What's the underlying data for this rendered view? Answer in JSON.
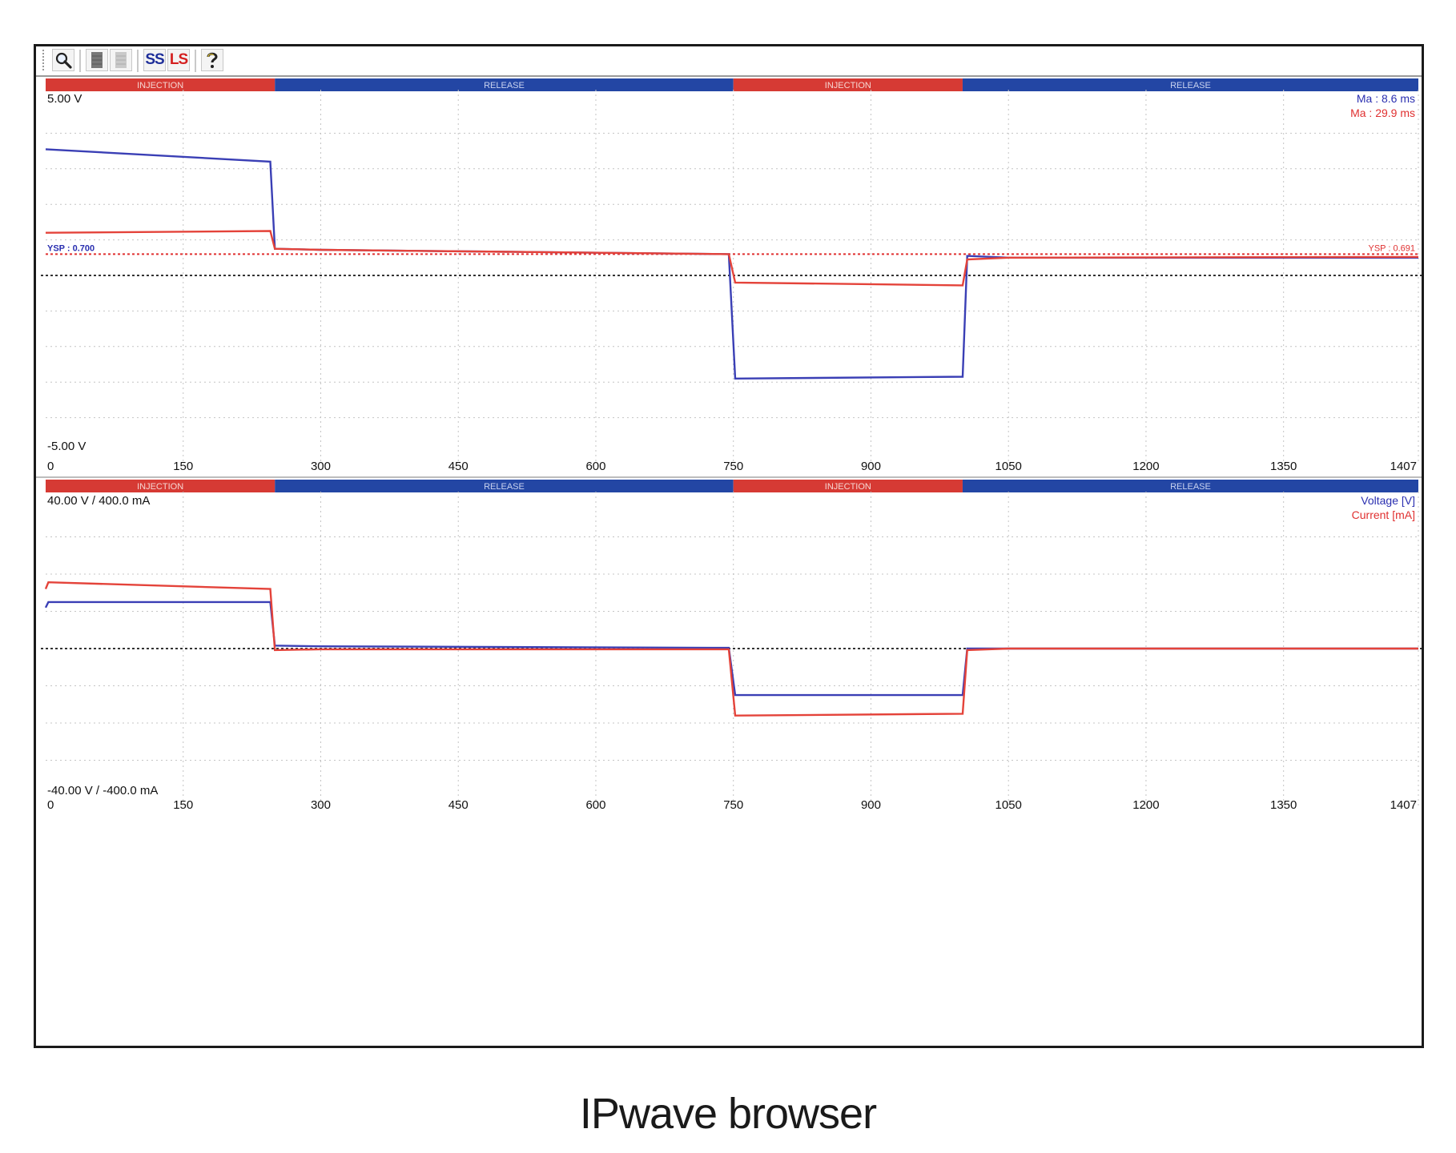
{
  "toolbar": {
    "buttons": [
      {
        "icon": "magnifier-icon"
      },
      {
        "icon": "dark-list-icon"
      },
      {
        "icon": "light-list-icon"
      },
      {
        "label": "SS",
        "color": "#1f2f9a"
      },
      {
        "label": "LS",
        "color": "#d42020"
      },
      {
        "icon": "help-icon"
      }
    ]
  },
  "phases": [
    {
      "label": "INJECTION",
      "kind": "injection"
    },
    {
      "label": "RELEASE",
      "kind": "release"
    },
    {
      "label": "INJECTION",
      "kind": "injection"
    },
    {
      "label": "RELEASE",
      "kind": "release"
    }
  ],
  "colors": {
    "injection": "#d63a34",
    "release": "#2346a4",
    "blue": "#3a3fb5",
    "red": "#e4433a"
  },
  "top_chart": {
    "y_max_label": "5.00 V",
    "y_min_label": "-5.00 V",
    "ysp_left": "YSP : 0.700",
    "ysp_right": "YSP : 0.691",
    "legend": [
      {
        "text": "Ma :  8.6 ms",
        "color": "#2a2fb0"
      },
      {
        "text": "Ma : 29.9 ms",
        "color": "#e03030"
      }
    ]
  },
  "bottom_chart": {
    "y_max_label": "40.00 V / 400.0 mA",
    "y_min_label": "-40.00 V / -400.0 mA",
    "legend": [
      {
        "text": "Voltage [V]",
        "color": "#2a2fb0"
      },
      {
        "text": "Current [mA]",
        "color": "#e03030"
      }
    ]
  },
  "chart_data": [
    {
      "type": "line",
      "x_ticks": [
        "0",
        "150",
        "300",
        "450",
        "600",
        "750",
        "900",
        "1050",
        "1200",
        "1350",
        "1407"
      ],
      "xlim": [
        0,
        1497
      ],
      "ylim": [
        -5,
        5
      ],
      "series": [
        {
          "name": "Ma :  8.6 ms",
          "x": [
            0,
            245,
            250,
            300,
            745,
            752,
            1000,
            1005,
            1050,
            1497
          ],
          "y": [
            3.55,
            3.2,
            0.75,
            0.72,
            0.6,
            -2.9,
            -2.85,
            0.55,
            0.5,
            0.5
          ],
          "color": "#3a3fb5"
        },
        {
          "name": "Ma : 29.9 ms",
          "x": [
            0,
            245,
            250,
            300,
            745,
            752,
            1000,
            1005,
            1050,
            1497
          ],
          "y": [
            1.2,
            1.25,
            0.75,
            0.72,
            0.6,
            -0.2,
            -0.28,
            0.45,
            0.5,
            0.52
          ],
          "color": "#e4433a"
        }
      ]
    },
    {
      "type": "line",
      "x_ticks": [
        "0",
        "150",
        "300",
        "450",
        "600",
        "750",
        "900",
        "1050",
        "1200",
        "1350",
        "1407"
      ],
      "xlim": [
        0,
        1497
      ],
      "ylim": [
        -40,
        40
      ],
      "series": [
        {
          "name": "Voltage [V]",
          "x": [
            0,
            3,
            245,
            250,
            300,
            745,
            752,
            1000,
            1005,
            1050,
            1497
          ],
          "y": [
            11,
            12.5,
            12.5,
            0.8,
            0.6,
            0.2,
            -12.5,
            -12.5,
            0,
            0,
            0
          ],
          "color": "#3a3fb5"
        },
        {
          "name": "Current [mA]",
          "x": [
            0,
            3,
            245,
            250,
            300,
            745,
            752,
            1000,
            1005,
            1050,
            1497
          ],
          "y": [
            16,
            17.8,
            16,
            -0.4,
            -0.2,
            -0.2,
            -18,
            -17.5,
            -0.4,
            0,
            0
          ],
          "color": "#e4433a"
        }
      ]
    }
  ],
  "caption": "IPwave browser"
}
